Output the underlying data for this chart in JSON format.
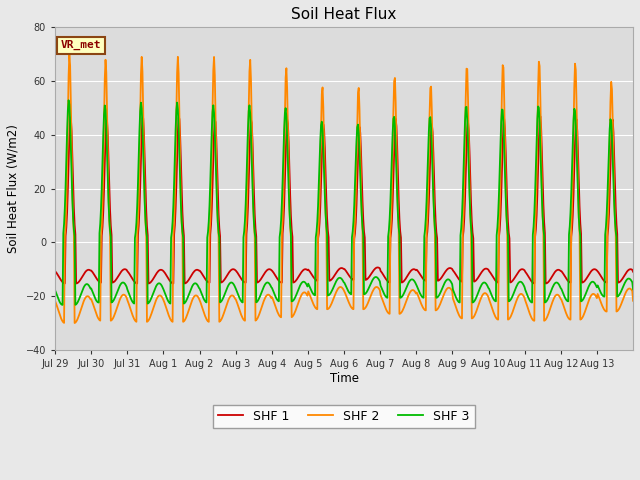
{
  "title": "Soil Heat Flux",
  "ylabel": "Soil Heat Flux (W/m2)",
  "xlabel": "Time",
  "ylim": [
    -40,
    80
  ],
  "yticks": [
    -40,
    -20,
    0,
    20,
    40,
    60,
    80
  ],
  "outer_bg": "#e8e8e8",
  "plot_bg": "#dcdcdc",
  "grid_color": "#ffffff",
  "annotation_text": "VR_met",
  "annotation_color": "#8b0000",
  "annotation_bg": "#ffffc0",
  "annotation_border": "#8b4513",
  "x_tick_labels": [
    "Jul 29",
    "Jul 30",
    "Jul 31",
    "Aug 1",
    "Aug 2",
    "Aug 3",
    "Aug 4",
    "Aug 5",
    "Aug 6",
    "Aug 7",
    "Aug 8",
    "Aug 9",
    "Aug 10",
    "Aug 11",
    "Aug 12",
    "Aug 13"
  ],
  "legend_labels": [
    "SHF 1",
    "SHF 2",
    "SHF 3"
  ],
  "shf1_color": "#cc0000",
  "shf2_color": "#ff8800",
  "shf3_color": "#00bb00",
  "line_width": 1.3,
  "n_days": 16,
  "samples_per_day": 48
}
